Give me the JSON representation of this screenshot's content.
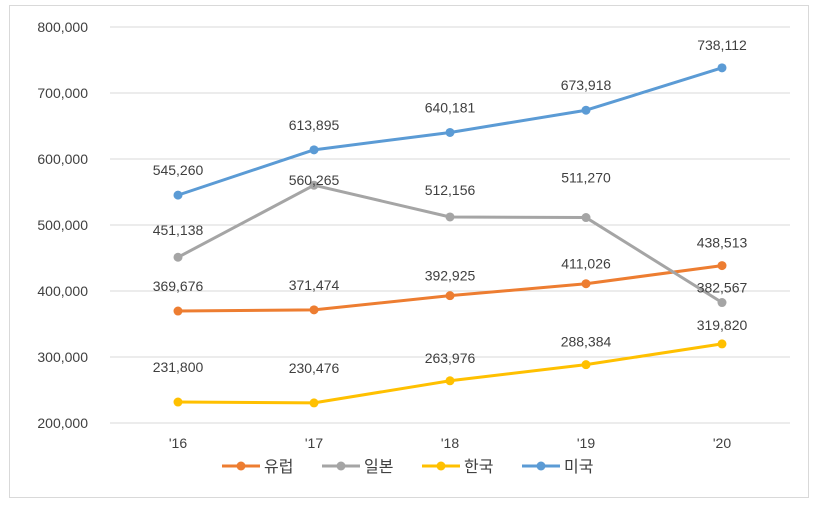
{
  "chart_data": {
    "type": "line",
    "title": "",
    "xlabel": "",
    "ylabel": "",
    "categories": [
      "'16",
      "'17",
      "'18",
      "'19",
      "'20"
    ],
    "ylim": [
      200000,
      800000
    ],
    "yticks": [
      200000,
      300000,
      400000,
      500000,
      600000,
      700000,
      800000
    ],
    "ytick_labels": [
      "200,000",
      "300,000",
      "400,000",
      "500,000",
      "600,000",
      "700,000",
      "800,000"
    ],
    "grid": true,
    "legend_position": "bottom",
    "series": [
      {
        "name": "유럽",
        "color": "#ED7D31",
        "values": [
          369676,
          371474,
          392925,
          411026,
          438513
        ],
        "labels": [
          "369,676",
          "371,474",
          "392,925",
          "411,026",
          "438,513"
        ]
      },
      {
        "name": "일본",
        "color": "#A5A5A5",
        "values": [
          451138,
          560265,
          512156,
          511270,
          382567
        ],
        "labels": [
          "451,138",
          "560,265",
          "512,156",
          "511,270",
          "382,567"
        ]
      },
      {
        "name": "한국",
        "color": "#FFC000",
        "values": [
          231800,
          230476,
          263976,
          288384,
          319820
        ],
        "labels": [
          "231,800",
          "230,476",
          "263,976",
          "288,384",
          "319,820"
        ]
      },
      {
        "name": "미국",
        "color": "#5B9BD5",
        "values": [
          545260,
          613895,
          640181,
          673918,
          738112
        ],
        "labels": [
          "545,260",
          "613,895",
          "640,181",
          "673,918",
          "738,112"
        ]
      }
    ]
  }
}
